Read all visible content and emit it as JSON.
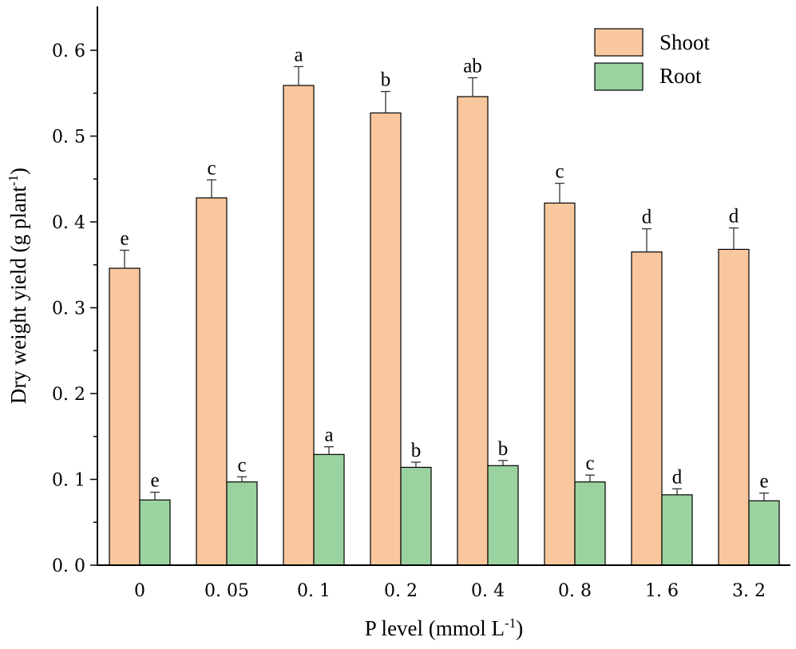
{
  "chart_data": {
    "type": "bar",
    "categories": [
      "0",
      "0. 05",
      "0. 1",
      "0. 2",
      "0. 4",
      "0. 8",
      "1. 6",
      "3. 2"
    ],
    "series": [
      {
        "name": "Shoot",
        "color": "#F9C79E",
        "values": [
          0.346,
          0.428,
          0.559,
          0.527,
          0.546,
          0.422,
          0.365,
          0.368
        ],
        "errors": [
          0.021,
          0.021,
          0.022,
          0.025,
          0.022,
          0.023,
          0.027,
          0.025
        ],
        "letters": [
          "e",
          "c",
          "a",
          "b",
          "ab",
          "c",
          "d",
          "d"
        ]
      },
      {
        "name": "Root",
        "color": "#9AD3A0",
        "values": [
          0.076,
          0.097,
          0.129,
          0.114,
          0.116,
          0.097,
          0.082,
          0.075
        ],
        "errors": [
          0.009,
          0.006,
          0.009,
          0.006,
          0.006,
          0.008,
          0.007,
          0.009
        ],
        "letters": [
          "e",
          "c",
          "a",
          "b",
          "b",
          "c",
          "d",
          "e"
        ]
      }
    ],
    "ylim": [
      0,
      0.65
    ],
    "yticks": [
      0.0,
      0.1,
      0.2,
      0.3,
      0.4,
      0.5,
      0.6
    ],
    "ytick_labels": [
      "0. 0",
      "0. 1",
      "0. 2",
      "0. 3",
      "0. 4",
      "0. 5",
      "0. 6"
    ],
    "xlabel": {
      "main": "P level (mmol L",
      "sup": "-1",
      "tail": ")"
    },
    "ylabel": {
      "main": "Dry weight yield (g plant",
      "sup": "-1",
      "tail": ")"
    },
    "legend_position": "top-right"
  }
}
